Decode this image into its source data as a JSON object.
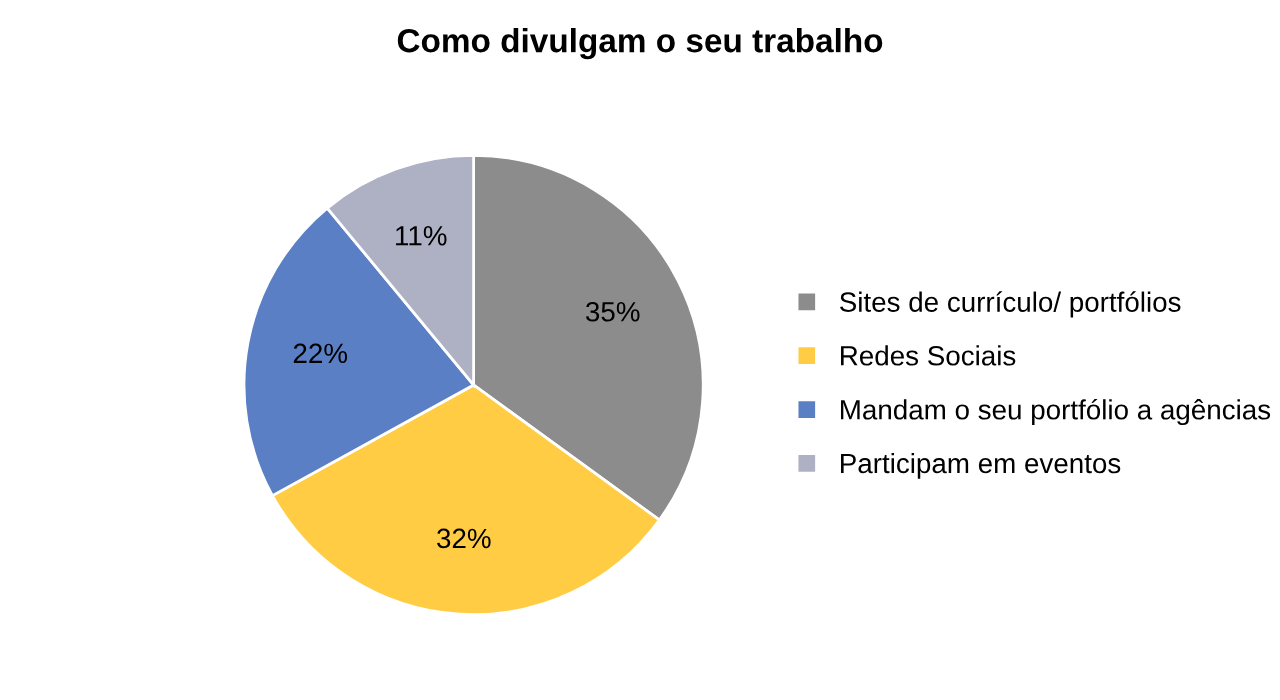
{
  "chart_data": {
    "type": "pie",
    "title": "Como divulgam o seu trabalho",
    "categories": [
      "Sites de currículo/ portfólios",
      "Redes Sociais",
      "Mandam o seu portfólio a agências",
      "Participam em eventos"
    ],
    "values": [
      35,
      32,
      22,
      11
    ],
    "value_labels": [
      "35%",
      "32%",
      "22%",
      "11%"
    ],
    "colors": [
      "#8c8c8c",
      "#ffcc44",
      "#5a7fc4",
      "#aeb0c4"
    ],
    "legend": "right"
  }
}
